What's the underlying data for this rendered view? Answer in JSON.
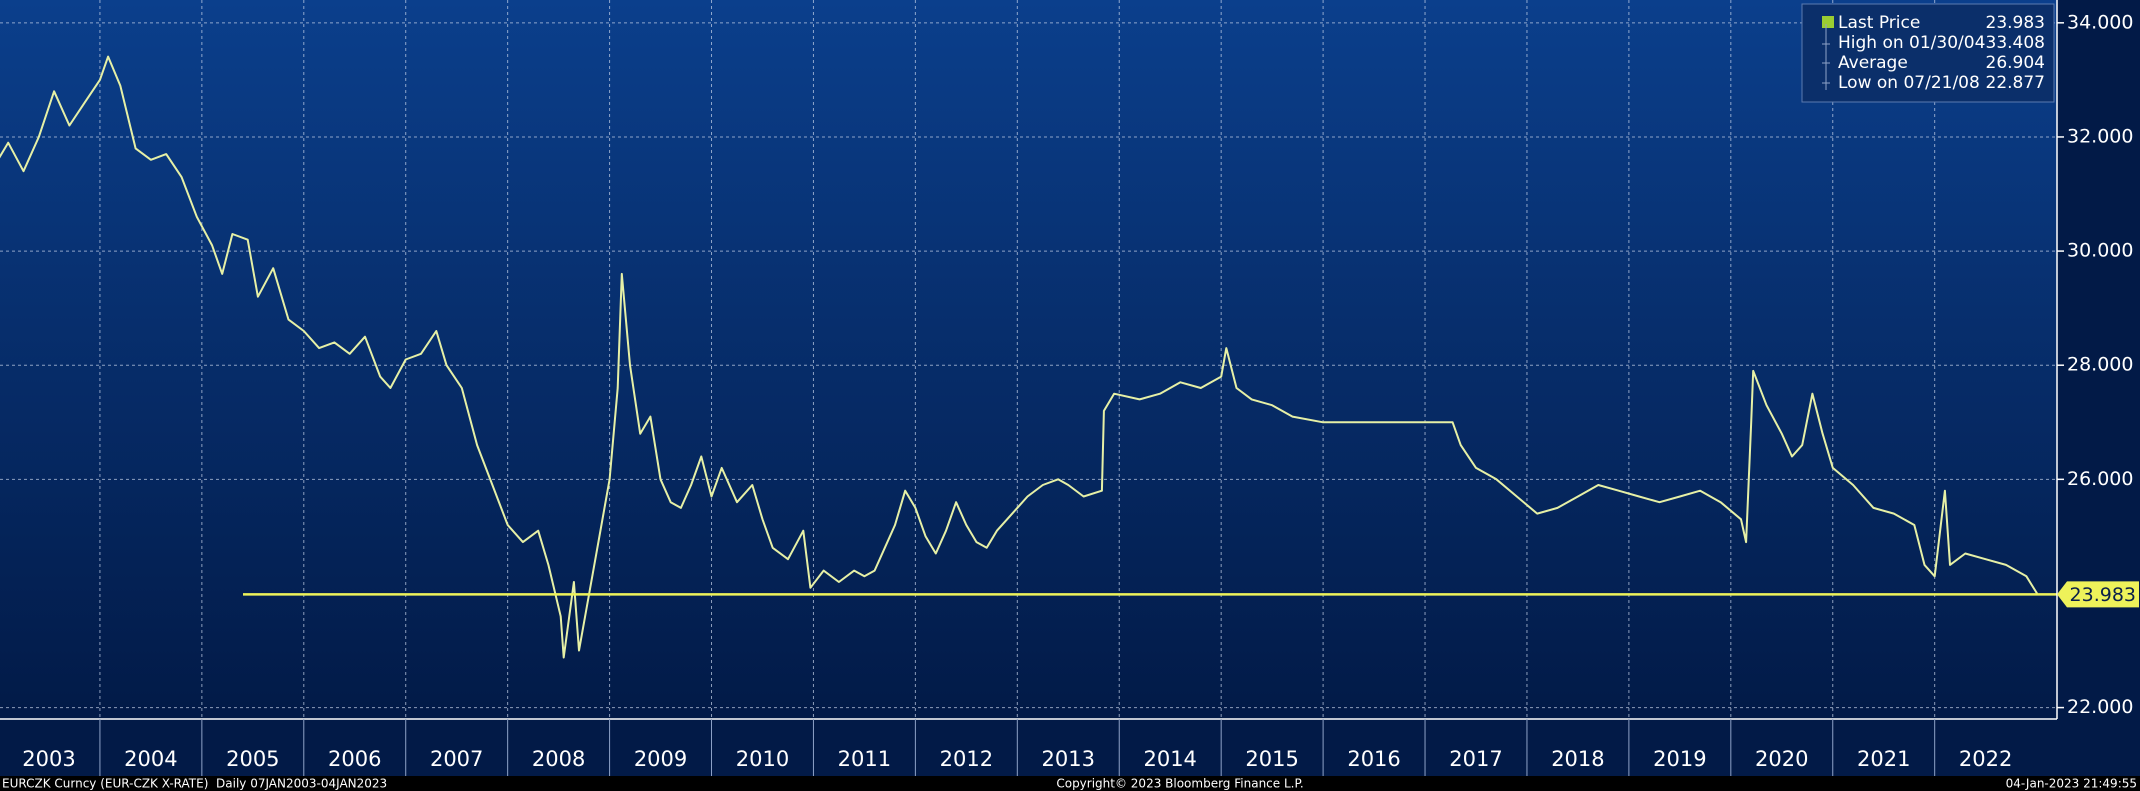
{
  "chart_data": {
    "type": "line",
    "series": [
      {
        "name": "Last Price",
        "color": "#e6f0a6",
        "values": [
          31.6,
          31.9,
          31.4,
          32.0,
          32.8,
          32.2,
          32.6,
          33.0,
          33.408,
          32.9,
          31.8,
          31.6,
          31.7,
          31.3,
          30.6,
          30.1,
          29.6,
          30.3,
          30.2,
          29.2,
          29.7,
          28.8,
          28.6,
          28.3,
          28.4,
          28.2,
          28.5,
          27.8,
          27.6,
          28.1,
          28.2,
          28.6,
          28.0,
          27.6,
          26.6,
          25.9,
          25.2,
          24.9,
          25.1,
          24.5,
          23.6,
          22.877,
          24.2,
          23.0,
          24.0,
          25.0,
          26.0,
          27.6,
          29.6,
          28.0,
          26.8,
          27.1,
          26.0,
          25.6,
          25.5,
          25.9,
          26.4,
          25.7,
          26.2,
          25.6,
          25.9,
          25.3,
          24.8,
          24.6,
          25.1,
          24.1,
          24.4,
          24.2,
          24.4,
          24.3,
          24.4,
          24.8,
          25.2,
          25.8,
          25.5,
          25.0,
          24.7,
          25.1,
          25.6,
          25.2,
          24.9,
          24.8,
          25.1,
          25.3,
          25.5,
          25.7,
          25.9,
          26.0,
          25.9,
          25.7,
          25.8,
          27.2,
          27.5,
          27.4,
          27.5,
          27.7,
          27.6,
          27.8,
          28.3,
          27.6,
          27.4,
          27.3,
          27.1,
          27.0,
          27.0,
          27.0,
          27.0,
          26.6,
          26.2,
          26.0,
          25.7,
          25.4,
          25.5,
          25.7,
          25.9,
          25.8,
          25.7,
          25.6,
          25.7,
          25.8,
          25.6,
          25.3,
          24.9,
          27.0,
          27.9,
          27.3,
          26.8,
          26.4,
          26.6,
          27.5,
          26.8,
          26.2,
          25.9,
          25.5,
          25.4,
          25.2,
          24.5,
          24.3,
          25.8,
          24.5,
          24.7,
          24.6,
          24.5,
          24.3,
          23.983
        ]
      }
    ],
    "x": [
      2003.0,
      2003.1,
      2003.25,
      2003.4,
      2003.55,
      2003.7,
      2003.85,
      2004.0,
      2004.08,
      2004.2,
      2004.35,
      2004.5,
      2004.65,
      2004.8,
      2004.95,
      2005.1,
      2005.2,
      2005.3,
      2005.45,
      2005.55,
      2005.7,
      2005.85,
      2006.0,
      2006.15,
      2006.3,
      2006.45,
      2006.6,
      2006.75,
      2006.85,
      2007.0,
      2007.15,
      2007.3,
      2007.4,
      2007.55,
      2007.7,
      2007.85,
      2008.0,
      2008.15,
      2008.3,
      2008.4,
      2008.52,
      2008.55,
      2008.65,
      2008.7,
      2008.8,
      2008.9,
      2009.0,
      2009.08,
      2009.12,
      2009.2,
      2009.3,
      2009.4,
      2009.5,
      2009.6,
      2009.7,
      2009.8,
      2009.9,
      2010.0,
      2010.1,
      2010.25,
      2010.4,
      2010.5,
      2010.6,
      2010.75,
      2010.9,
      2010.97,
      2011.1,
      2011.25,
      2011.4,
      2011.5,
      2011.6,
      2011.7,
      2011.8,
      2011.9,
      2012.0,
      2012.1,
      2012.2,
      2012.3,
      2012.4,
      2012.5,
      2012.6,
      2012.7,
      2012.8,
      2012.9,
      2013.0,
      2013.1,
      2013.25,
      2013.4,
      2013.5,
      2013.65,
      2013.83,
      2013.85,
      2013.95,
      2014.2,
      2014.4,
      2014.6,
      2014.8,
      2015.0,
      2015.05,
      2015.15,
      2015.3,
      2015.5,
      2015.7,
      2016.0,
      2016.5,
      2017.0,
      2017.27,
      2017.35,
      2017.5,
      2017.7,
      2017.9,
      2018.1,
      2018.3,
      2018.5,
      2018.7,
      2018.9,
      2019.1,
      2019.3,
      2019.5,
      2019.7,
      2019.9,
      2020.1,
      2020.15,
      2020.2,
      2020.22,
      2020.35,
      2020.5,
      2020.6,
      2020.7,
      2020.8,
      2020.9,
      2021.0,
      2021.2,
      2021.4,
      2021.6,
      2021.8,
      2021.9,
      2022.0,
      2022.1,
      2022.15,
      2022.3,
      2022.5,
      2022.7,
      2022.9,
      2023.01
    ],
    "xlim": [
      2003,
      2023.2
    ],
    "xticks": [
      2003,
      2004,
      2005,
      2006,
      2007,
      2008,
      2009,
      2010,
      2011,
      2012,
      2013,
      2014,
      2015,
      2016,
      2017,
      2018,
      2019,
      2020,
      2021,
      2022
    ],
    "ylim": [
      21.8,
      34.4
    ],
    "yticks": [
      {
        "value": 22,
        "label": "22.000"
      },
      {
        "value": 26,
        "label": "26.000"
      },
      {
        "value": 28,
        "label": "28.000"
      },
      {
        "value": 30,
        "label": "30.000"
      },
      {
        "value": 32,
        "label": "32.000"
      },
      {
        "value": 34,
        "label": "34.000"
      }
    ],
    "grid": true,
    "last_value": 23.983,
    "last_line_color": "#eef25a",
    "legend_position": "top-right",
    "stats": [
      {
        "label": "High on 01/30/04",
        "value": 33.408
      },
      {
        "label": "Average",
        "value": 26.904
      },
      {
        "label": "Low on 07/21/08",
        "value": 22.877
      }
    ],
    "footer": {
      "left": "EURCZK Curncy (EUR-CZK X-RATE)  Daily 07JAN2003-04JAN2023",
      "center": "Copyright© 2023 Bloomberg Finance L.P.",
      "right": "04-Jan-2023 21:49:55"
    }
  }
}
